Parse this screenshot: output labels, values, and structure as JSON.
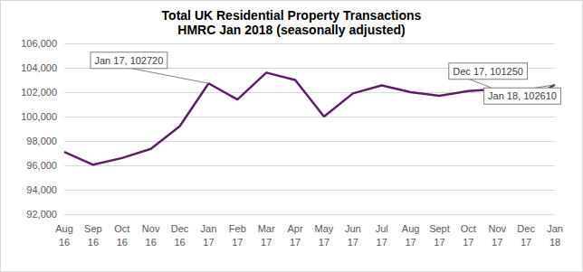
{
  "chart_data": {
    "type": "line",
    "title": "Total UK Residential Property Transactions",
    "subtitle": "HMRC Jan 2018 (seasonally adjusted)",
    "categories": [
      "Aug 16",
      "Sep 16",
      "Oct 16",
      "Nov 16",
      "Dec 16",
      "Jan 17",
      "Feb 17",
      "Mar 17",
      "Apr 17",
      "May 17",
      "Jun 17",
      "Jul 17",
      "Aug 17",
      "Sept 17",
      "Oct 17",
      "Nov 17",
      "Dec 17",
      "Jan 18"
    ],
    "values": [
      97100,
      96050,
      96600,
      97350,
      99200,
      102720,
      101400,
      103600,
      103000,
      100000,
      101900,
      102550,
      102000,
      101700,
      102100,
      102250,
      101250,
      102610
    ],
    "color": "#5b1f66",
    "ylim": [
      92000,
      106000
    ],
    "yticks": [
      92000,
      94000,
      96000,
      98000,
      100000,
      102000,
      104000,
      106000
    ],
    "grid": true,
    "annotations": [
      {
        "x": "Jan 17",
        "text": "Jan 17, 102720"
      },
      {
        "x": "Dec 17",
        "text": "Dec 17, 101250"
      },
      {
        "x": "Jan 18",
        "text": "Jan 18, 102610"
      }
    ]
  }
}
